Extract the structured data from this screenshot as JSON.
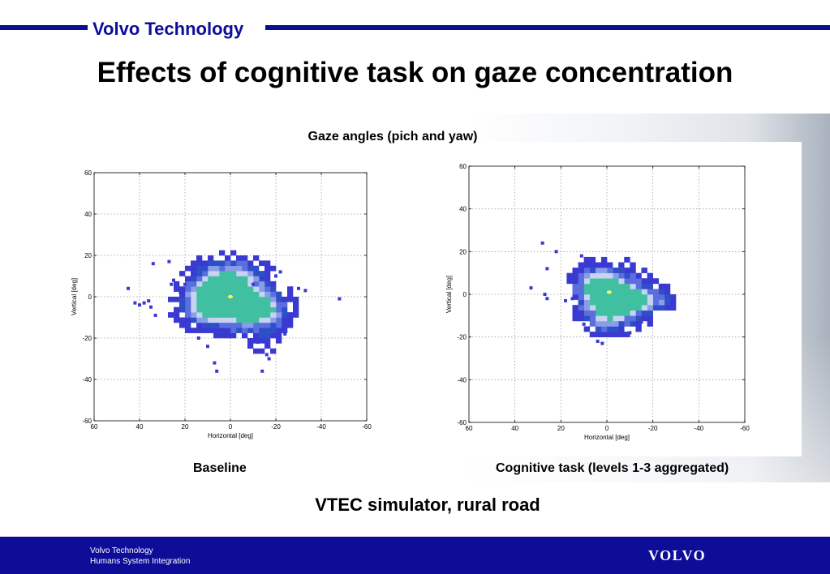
{
  "header": {
    "company": "Volvo Technology",
    "bar_color": "#0d0d98"
  },
  "slide": {
    "title": "Effects of cognitive task on gaze concentration",
    "subtitle": "Gaze angles (pich and yaw)",
    "bottom_note": "VTEC simulator, rural road"
  },
  "chart_data": [
    {
      "type": "heatmap",
      "caption": "Baseline",
      "xlabel": "Horizontal [deg]",
      "ylabel": "Vertical [deg]",
      "xlim": [
        60,
        -60
      ],
      "ylim": [
        -60,
        60
      ],
      "xticks": [
        60,
        40,
        20,
        0,
        -20,
        -40,
        -60
      ],
      "yticks": [
        60,
        40,
        20,
        0,
        -20,
        -40,
        -60
      ],
      "x_tick_labels": [
        "60",
        "40",
        "20",
        "0",
        "-20",
        "-40",
        "-60"
      ],
      "y_tick_labels": [
        "60",
        "40",
        "20",
        "0",
        "-20",
        "-40",
        "-60"
      ],
      "grid": true,
      "colormap": [
        "#3a3ad2",
        "#2f4fc8",
        "#5a6fdd",
        "#8a9ee8",
        "#c7d2f5",
        "#40c0a0",
        "#ffff60"
      ],
      "peak": {
        "x": 0,
        "y": 0
      },
      "density_blobs": [
        {
          "x": 0,
          "y": 0,
          "sx": 12,
          "sy": 9,
          "w": 1.0
        },
        {
          "x": -8,
          "y": -6,
          "sx": 10,
          "sy": 7,
          "w": 0.7
        },
        {
          "x": 8,
          "y": 5,
          "sx": 6,
          "sy": 9,
          "w": 0.6
        },
        {
          "x": -5,
          "y": 12,
          "sx": 6,
          "sy": 5,
          "w": 0.4
        },
        {
          "x": 13,
          "y": -5,
          "sx": 7,
          "sy": 6,
          "w": 0.45
        },
        {
          "x": -18,
          "y": -8,
          "sx": 5,
          "sy": 6,
          "w": 0.35
        },
        {
          "x": -15,
          "y": -22,
          "sx": 4,
          "sy": 6,
          "w": 0.25
        }
      ],
      "scatter_points": [
        {
          "x": 38,
          "y": -3
        },
        {
          "x": 35,
          "y": -5
        },
        {
          "x": 36,
          "y": -2
        },
        {
          "x": 40,
          "y": -4
        },
        {
          "x": 33,
          "y": -9
        },
        {
          "x": 45,
          "y": 4
        },
        {
          "x": 42,
          "y": -3
        },
        {
          "x": 27,
          "y": 17
        },
        {
          "x": 34,
          "y": 16
        },
        {
          "x": 24,
          "y": 5
        },
        {
          "x": 26,
          "y": 6
        },
        {
          "x": 22,
          "y": 2
        },
        {
          "x": 25,
          "y": 8
        },
        {
          "x": 20,
          "y": 6
        },
        {
          "x": -10,
          "y": 6
        },
        {
          "x": -14,
          "y": 9
        },
        {
          "x": -20,
          "y": 10
        },
        {
          "x": -22,
          "y": 12
        },
        {
          "x": -30,
          "y": 4
        },
        {
          "x": -33,
          "y": 3
        },
        {
          "x": -48,
          "y": -1
        },
        {
          "x": 7,
          "y": -32
        },
        {
          "x": 6,
          "y": -36
        },
        {
          "x": -14,
          "y": -36
        },
        {
          "x": -16,
          "y": -28
        },
        {
          "x": -17,
          "y": -30
        },
        {
          "x": -22,
          "y": -16
        },
        {
          "x": -24,
          "y": -18
        },
        {
          "x": -12,
          "y": -22
        },
        {
          "x": 14,
          "y": -20
        },
        {
          "x": 10,
          "y": -24
        }
      ]
    },
    {
      "type": "heatmap",
      "caption": "Cognitive task (levels 1-3 aggregated)",
      "xlabel": "Horizontal [deg]",
      "ylabel": "Vertical [deg]",
      "xlim": [
        60,
        -60
      ],
      "ylim": [
        -60,
        60
      ],
      "xticks": [
        60,
        40,
        20,
        0,
        -20,
        -40,
        -60
      ],
      "yticks": [
        60,
        40,
        20,
        0,
        -20,
        -40,
        -60
      ],
      "x_tick_labels": [
        "60",
        "40",
        "20",
        "0",
        "-20",
        "-40",
        "-60"
      ],
      "y_tick_labels": [
        "60",
        "40",
        "20",
        "0",
        "-20",
        "-40",
        "-60"
      ],
      "grid": true,
      "colormap": [
        "#3a3ad2",
        "#2f4fc8",
        "#5a6fdd",
        "#8a9ee8",
        "#c7d2f5",
        "#40c0a0",
        "#ffff60"
      ],
      "peak": {
        "x": -1,
        "y": 1
      },
      "density_blobs": [
        {
          "x": -1,
          "y": 1,
          "sx": 9,
          "sy": 8,
          "w": 1.0
        },
        {
          "x": -8,
          "y": -5,
          "sx": 8,
          "sy": 7,
          "w": 0.7
        },
        {
          "x": 6,
          "y": 4,
          "sx": 5,
          "sy": 6,
          "w": 0.55
        },
        {
          "x": -18,
          "y": -2,
          "sx": 6,
          "sy": 4,
          "w": 0.45
        },
        {
          "x": -25,
          "y": -2,
          "sx": 3,
          "sy": 3,
          "w": 0.4
        },
        {
          "x": 2,
          "y": -12,
          "sx": 5,
          "sy": 5,
          "w": 0.4
        }
      ],
      "scatter_points": [
        {
          "x": 28,
          "y": 24
        },
        {
          "x": 22,
          "y": 20
        },
        {
          "x": 11,
          "y": 18
        },
        {
          "x": 26,
          "y": 12
        },
        {
          "x": 33,
          "y": 3
        },
        {
          "x": 27,
          "y": 0
        },
        {
          "x": 26,
          "y": -2
        },
        {
          "x": 15,
          "y": -2
        },
        {
          "x": 18,
          "y": -3
        },
        {
          "x": 4,
          "y": -22
        },
        {
          "x": 2,
          "y": -23
        },
        {
          "x": -10,
          "y": -18
        },
        {
          "x": -12,
          "y": -14
        },
        {
          "x": -15,
          "y": -13
        },
        {
          "x": 10,
          "y": -14
        },
        {
          "x": -28,
          "y": -1
        }
      ]
    }
  ],
  "footer": {
    "line1": "Volvo Technology",
    "line2": "Humans System Integration",
    "logo": "VOLVO",
    "bg_color": "#0d0d98"
  }
}
